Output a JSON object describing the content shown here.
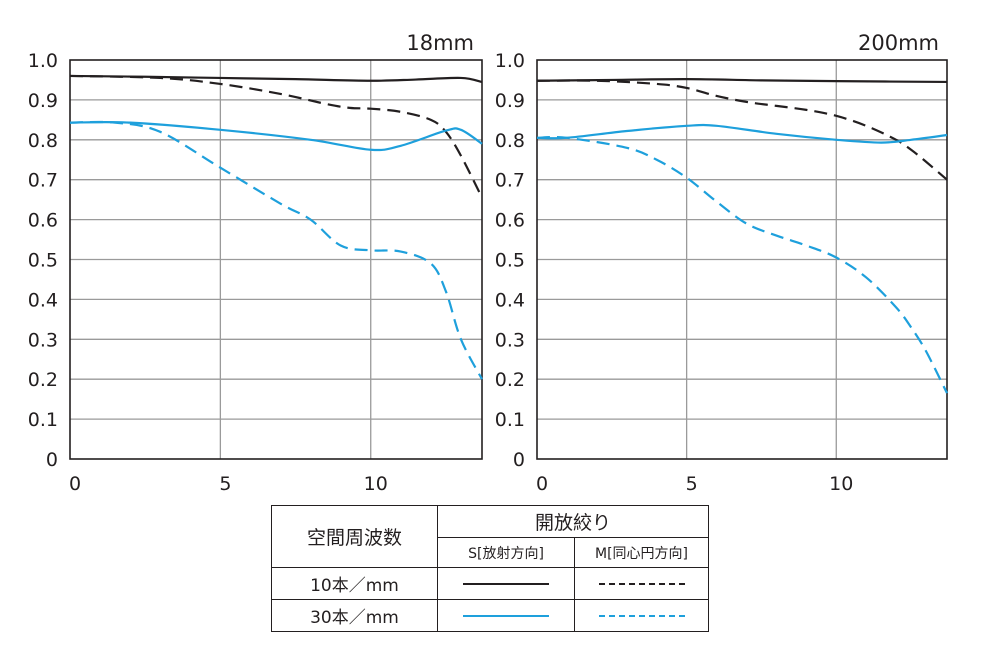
{
  "chart_data": [
    {
      "type": "line",
      "title": "18mm",
      "xlim": [
        0,
        13.7
      ],
      "ylim": [
        0,
        1.0
      ],
      "xticks": [
        "0",
        "5",
        "10"
      ],
      "yticks": [
        "0",
        "0.1",
        "0.2",
        "0.3",
        "0.4",
        "0.5",
        "0.6",
        "0.7",
        "0.8",
        "0.9",
        "1.0"
      ],
      "grid": true,
      "series": [
        {
          "freq": "10",
          "dir": "S",
          "color": "#231f20",
          "dashed": false,
          "x": [
            0,
            2.5,
            5,
            7.5,
            10,
            11.5,
            13,
            13.7
          ],
          "y": [
            0.96,
            0.958,
            0.955,
            0.952,
            0.948,
            0.951,
            0.955,
            0.945
          ]
        },
        {
          "freq": "10",
          "dir": "M",
          "color": "#231f20",
          "dashed": true,
          "x": [
            0,
            3,
            5,
            7,
            8.5,
            9.3,
            10,
            11,
            12,
            12.5,
            13,
            13.7
          ],
          "y": [
            0.96,
            0.955,
            0.94,
            0.915,
            0.89,
            0.88,
            0.878,
            0.87,
            0.85,
            0.82,
            0.76,
            0.655
          ]
        },
        {
          "freq": "30",
          "dir": "S",
          "color": "#1ea0dc",
          "dashed": false,
          "x": [
            0,
            2,
            5,
            8,
            10,
            11,
            12.5,
            13,
            13.7
          ],
          "y": [
            0.843,
            0.843,
            0.825,
            0.8,
            0.775,
            0.785,
            0.823,
            0.825,
            0.79
          ]
        },
        {
          "freq": "30",
          "dir": "M",
          "color": "#1ea0dc",
          "dashed": true,
          "x": [
            0,
            1.5,
            3,
            5,
            7,
            8,
            9,
            10,
            11,
            12,
            12.5,
            13,
            13.7
          ],
          "y": [
            0.843,
            0.843,
            0.82,
            0.73,
            0.64,
            0.6,
            0.535,
            0.523,
            0.52,
            0.49,
            0.42,
            0.3,
            0.2
          ]
        }
      ]
    },
    {
      "type": "line",
      "title": "200mm",
      "xlim": [
        0,
        13.7
      ],
      "ylim": [
        0,
        1.0
      ],
      "xticks": [
        "0",
        "5",
        "10"
      ],
      "yticks": [
        "0",
        "0.1",
        "0.2",
        "0.3",
        "0.4",
        "0.5",
        "0.6",
        "0.7",
        "0.8",
        "0.9",
        "1.0"
      ],
      "grid": true,
      "series": [
        {
          "freq": "10",
          "dir": "S",
          "color": "#231f20",
          "dashed": false,
          "x": [
            0,
            2.5,
            5,
            7.5,
            10,
            13.7
          ],
          "y": [
            0.948,
            0.95,
            0.952,
            0.949,
            0.947,
            0.945
          ]
        },
        {
          "freq": "10",
          "dir": "M",
          "color": "#231f20",
          "dashed": true,
          "x": [
            0,
            2,
            4,
            5,
            6,
            7,
            8,
            9,
            10,
            11,
            12,
            12.5,
            13,
            13.7
          ],
          "y": [
            0.948,
            0.948,
            0.94,
            0.93,
            0.91,
            0.895,
            0.885,
            0.875,
            0.86,
            0.835,
            0.8,
            0.775,
            0.745,
            0.7
          ]
        },
        {
          "freq": "30",
          "dir": "S",
          "color": "#1ea0dc",
          "dashed": false,
          "x": [
            0,
            1,
            3,
            5,
            6,
            8,
            10,
            11.5,
            12.5,
            13.7
          ],
          "y": [
            0.805,
            0.805,
            0.822,
            0.835,
            0.835,
            0.815,
            0.8,
            0.793,
            0.8,
            0.812
          ]
        },
        {
          "freq": "30",
          "dir": "M",
          "color": "#1ea0dc",
          "dashed": true,
          "x": [
            0,
            1,
            3,
            4,
            5,
            6,
            7,
            8,
            9,
            10,
            11,
            12,
            12.5,
            13,
            13.7
          ],
          "y": [
            0.805,
            0.805,
            0.78,
            0.75,
            0.705,
            0.645,
            0.59,
            0.56,
            0.535,
            0.505,
            0.455,
            0.38,
            0.33,
            0.27,
            0.165
          ]
        }
      ]
    }
  ],
  "legend": {
    "freq_header": "空間周波数",
    "aperture_header": "開放絞り",
    "s_header": "S[放射方向]",
    "m_header": "M[同心円方向]",
    "rows": [
      {
        "label": "10本／mm",
        "color": "#231f20"
      },
      {
        "label": "30本／mm",
        "color": "#1ea0dc"
      }
    ]
  }
}
